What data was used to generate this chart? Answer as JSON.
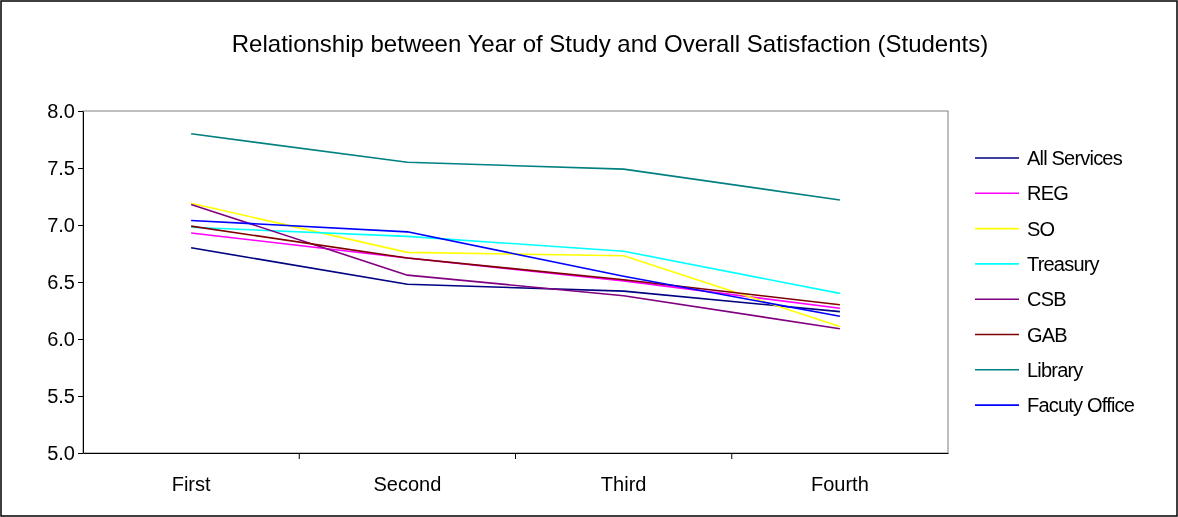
{
  "chart_data": {
    "type": "line",
    "title": "Relationship between Year of Study and Overall Satisfaction (Students)",
    "categories": [
      "First",
      "Second",
      "Third",
      "Fourth"
    ],
    "ylim": [
      5,
      8
    ],
    "yticks": [
      {
        "value": 5,
        "label": "5.0"
      },
      {
        "value": 5.5,
        "label": "5.5"
      },
      {
        "value": 6,
        "label": "6.0"
      },
      {
        "value": 6.5,
        "label": "6.5"
      },
      {
        "value": 7,
        "label": "7.0"
      },
      {
        "value": 7.5,
        "label": "7.5"
      },
      {
        "value": 8,
        "label": "8.0"
      }
    ],
    "grid": false,
    "legend": "right",
    "marker": "none",
    "line_style": "solid",
    "series": [
      {
        "name": "All Services",
        "color": "#000080",
        "values": [
          6.8,
          6.48,
          6.42,
          6.24
        ]
      },
      {
        "name": "REG",
        "color": "#ff00ff",
        "values": [
          6.93,
          6.71,
          6.51,
          6.27
        ]
      },
      {
        "name": "SO",
        "color": "#ffff00",
        "values": [
          7.19,
          6.76,
          6.73,
          6.11
        ]
      },
      {
        "name": "Treasury",
        "color": "#00ffff",
        "values": [
          6.98,
          6.9,
          6.77,
          6.4
        ]
      },
      {
        "name": "CSB",
        "color": "#800080",
        "values": [
          7.18,
          6.56,
          6.38,
          6.09
        ]
      },
      {
        "name": "GAB",
        "color": "#800000",
        "values": [
          6.99,
          6.71,
          6.52,
          6.3
        ]
      },
      {
        "name": "Library",
        "color": "#008080",
        "values": [
          7.8,
          7.55,
          7.49,
          7.22
        ]
      },
      {
        "name": "Facuty Office",
        "color": "#0000ff",
        "values": [
          7.04,
          6.94,
          6.55,
          6.2
        ]
      }
    ]
  }
}
